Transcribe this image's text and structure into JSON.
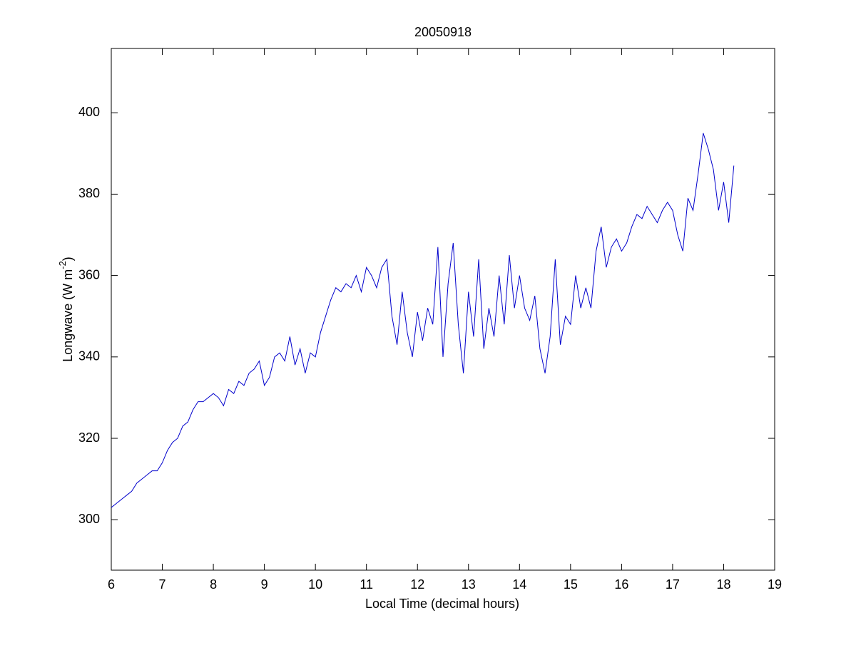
{
  "chart_data": {
    "type": "line",
    "title": "20050918",
    "xlabel": "Local Time (decimal hours)",
    "ylabel": [
      "Longwave (W m",
      "-2",
      ")"
    ],
    "x": [
      6.0,
      6.1,
      6.2,
      6.3,
      6.4,
      6.5,
      6.6,
      6.7,
      6.8,
      6.9,
      7.0,
      7.1,
      7.2,
      7.3,
      7.4,
      7.5,
      7.6,
      7.7,
      7.8,
      7.9,
      8.0,
      8.1,
      8.2,
      8.3,
      8.4,
      8.5,
      8.6,
      8.7,
      8.8,
      8.9,
      9.0,
      9.1,
      9.2,
      9.3,
      9.4,
      9.5,
      9.6,
      9.7,
      9.8,
      9.9,
      10.0,
      10.1,
      10.2,
      10.3,
      10.4,
      10.5,
      10.6,
      10.7,
      10.8,
      10.9,
      11.0,
      11.1,
      11.2,
      11.3,
      11.4,
      11.5,
      11.6,
      11.7,
      11.8,
      11.9,
      12.0,
      12.1,
      12.2,
      12.3,
      12.4,
      12.5,
      12.6,
      12.7,
      12.8,
      12.9,
      13.0,
      13.1,
      13.2,
      13.3,
      13.4,
      13.5,
      13.6,
      13.7,
      13.8,
      13.9,
      14.0,
      14.1,
      14.2,
      14.3,
      14.4,
      14.5,
      14.6,
      14.7,
      14.8,
      14.9,
      15.0,
      15.1,
      15.2,
      15.3,
      15.4,
      15.5,
      15.6,
      15.7,
      15.8,
      15.9,
      16.0,
      16.1,
      16.2,
      16.3,
      16.4,
      16.5,
      16.6,
      16.7,
      16.8,
      16.9,
      17.0,
      17.1,
      17.2,
      17.3,
      17.4,
      17.5,
      17.6,
      17.7,
      17.8,
      17.9,
      18.0,
      18.1,
      18.2
    ],
    "series": [
      {
        "color": "#0000cc",
        "values": [
          303,
          304,
          305,
          306,
          307,
          309,
          310,
          311,
          312,
          312,
          314,
          317,
          319,
          320,
          323,
          324,
          327,
          329,
          329,
          330,
          331,
          330,
          328,
          332,
          331,
          334,
          333,
          336,
          337,
          339,
          333,
          335,
          340,
          341,
          339,
          345,
          338,
          342,
          336,
          341,
          340,
          346,
          350,
          354,
          357,
          356,
          358,
          357,
          360,
          356,
          362,
          360,
          357,
          362,
          364,
          350,
          343,
          356,
          346,
          340,
          351,
          344,
          352,
          348,
          367,
          340,
          358,
          368,
          348,
          336,
          356,
          345,
          364,
          342,
          352,
          345,
          360,
          348,
          365,
          352,
          360,
          352,
          349,
          355,
          342,
          336,
          345,
          364,
          343,
          350,
          348,
          360,
          352,
          357,
          352,
          366,
          372,
          362,
          367,
          369,
          366,
          368,
          372,
          375,
          374,
          377,
          375,
          373,
          376,
          378,
          376,
          370,
          366,
          379,
          376,
          385,
          395,
          391,
          386,
          376,
          383,
          373,
          387
        ]
      }
    ],
    "xlim": [
      6,
      19
    ],
    "xticks": [
      6,
      7,
      8,
      9,
      10,
      11,
      12,
      13,
      14,
      15,
      16,
      17,
      18,
      19
    ],
    "ylim": [
      287.6,
      415.8
    ],
    "yticks": [
      300,
      320,
      340,
      360,
      380,
      400
    ],
    "grid": false
  }
}
